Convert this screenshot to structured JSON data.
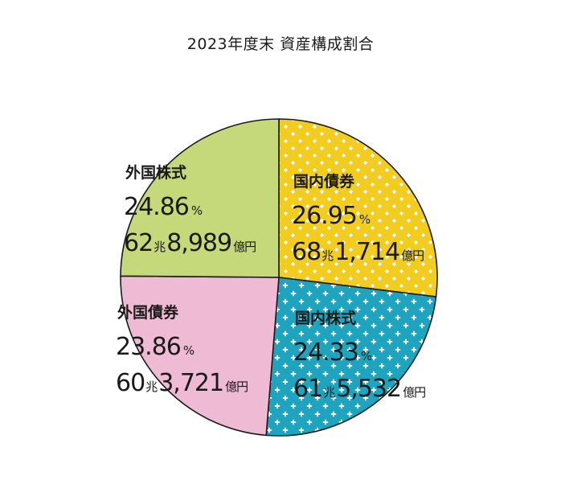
{
  "chart_data": {
    "type": "pie",
    "title": "2023年度末 資産構成割合",
    "slices": [
      {
        "label": "国内債券",
        "percent": 26.95,
        "amount_cho": "68",
        "amount_oku": "1,714",
        "color": "#f2cd1f",
        "pattern": "diamond-dots",
        "pattern_color": "#ffffff"
      },
      {
        "label": "国内株式",
        "percent": 24.33,
        "amount_cho": "61",
        "amount_oku": "5,532",
        "color": "#1fa4c0",
        "pattern": "crosses",
        "pattern_color": "#ffffff"
      },
      {
        "label": "外国債券",
        "percent": 23.86,
        "amount_cho": "60",
        "amount_oku": "3,721",
        "color": "#efbbd4",
        "pattern": "none"
      },
      {
        "label": "外国株式",
        "percent": 24.86,
        "amount_cho": "62",
        "amount_oku": "8,989",
        "color": "#c5d97a",
        "pattern": "none"
      }
    ],
    "units": {
      "percent": "%",
      "cho": "兆",
      "oku_yen": "億円"
    },
    "start_angle_deg": 0,
    "direction": "clockwise",
    "stroke_color": "#1a1a1a"
  }
}
